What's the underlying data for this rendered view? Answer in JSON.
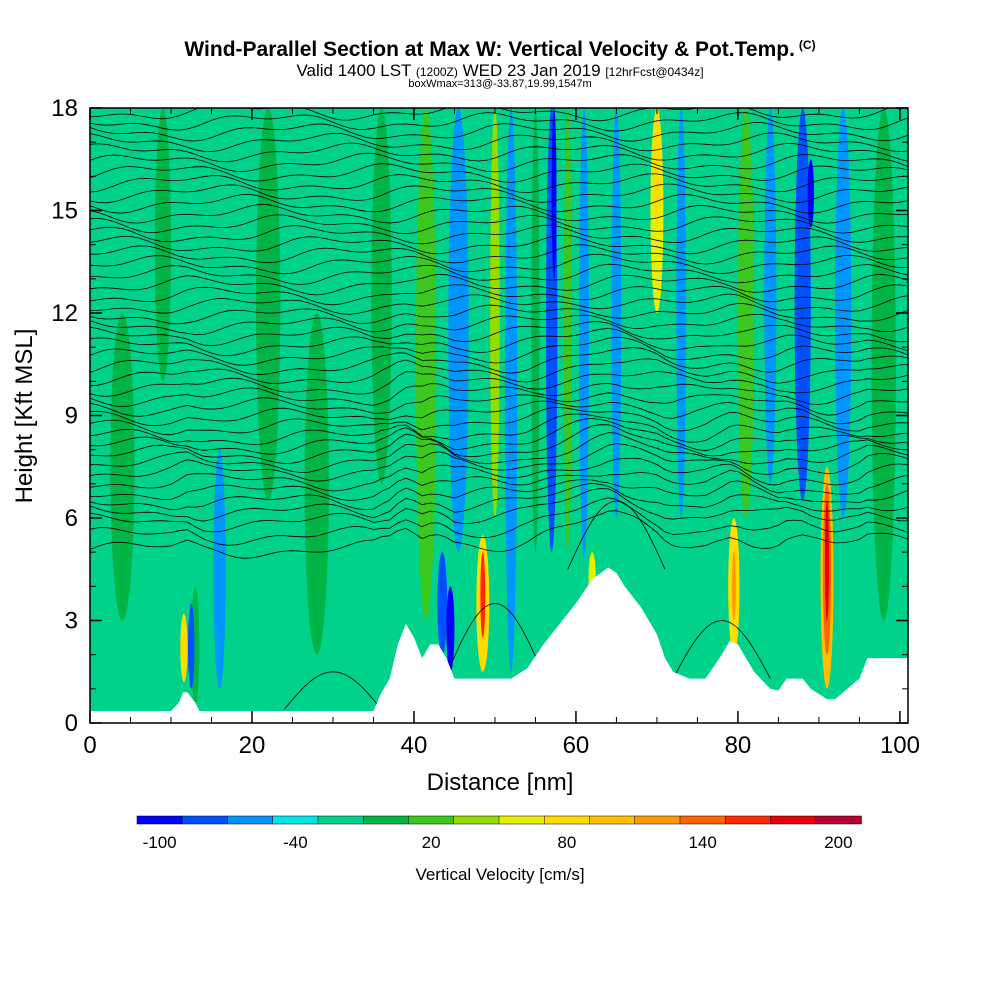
{
  "header": {
    "title": "Wind-Parallel Section at Max W: Vertical Velocity & Pot.Temp.",
    "title_mark": "(C)",
    "subtitle_a": "Valid 1400 LST",
    "subtitle_b": "(1200Z)",
    "subtitle_c": "WED 23 Jan 2019",
    "subtitle_d": "[12hrFcst@0434z]",
    "box_info": "boxWmax=313@-33.87,19.99,1547m"
  },
  "chart_data": {
    "type": "heatmap",
    "xlabel": "Distance [nm]",
    "ylabel": "Height [Kft MSL]",
    "xlim": [
      0,
      101
    ],
    "ylim": [
      0,
      18
    ],
    "x_ticks": [
      0,
      20,
      40,
      60,
      80,
      100
    ],
    "y_ticks": [
      0,
      3,
      6,
      9,
      12,
      15,
      18
    ],
    "background_level": 1,
    "terrain": [
      [
        0,
        0.35
      ],
      [
        10,
        0.35
      ],
      [
        11,
        0.6
      ],
      [
        11.5,
        0.9
      ],
      [
        12,
        0.9
      ],
      [
        13,
        0.6
      ],
      [
        13.5,
        0.35
      ],
      [
        24,
        0.35
      ],
      [
        35,
        0.35
      ],
      [
        36,
        0.9
      ],
      [
        37,
        1.3
      ],
      [
        38,
        2.3
      ],
      [
        39,
        2.9
      ],
      [
        40,
        2.5
      ],
      [
        41,
        1.9
      ],
      [
        42,
        2.3
      ],
      [
        43,
        2.3
      ],
      [
        44,
        1.9
      ],
      [
        45,
        1.3
      ],
      [
        50,
        1.3
      ],
      [
        52,
        1.3
      ],
      [
        54,
        1.6
      ],
      [
        56,
        2.3
      ],
      [
        58,
        2.9
      ],
      [
        60,
        3.5
      ],
      [
        62,
        4.2
      ],
      [
        64,
        4.55
      ],
      [
        65,
        4.4
      ],
      [
        66,
        4.0
      ],
      [
        68,
        3.4
      ],
      [
        70,
        2.6
      ],
      [
        71,
        1.9
      ],
      [
        72,
        1.5
      ],
      [
        74,
        1.3
      ],
      [
        76,
        1.3
      ],
      [
        78,
        2.0
      ],
      [
        79,
        2.4
      ],
      [
        80,
        2.3
      ],
      [
        81,
        1.9
      ],
      [
        82,
        1.5
      ],
      [
        84,
        1.0
      ],
      [
        85,
        0.95
      ],
      [
        86,
        1.3
      ],
      [
        88,
        1.3
      ],
      [
        89,
        1.0
      ],
      [
        91,
        0.7
      ],
      [
        92,
        0.7
      ],
      [
        95,
        1.3
      ],
      [
        96,
        1.9
      ],
      [
        101,
        1.9
      ]
    ],
    "w_bands": [
      {
        "x": 4,
        "width": 3.0,
        "bottom": 3.0,
        "top": 12.0,
        "level": 2
      },
      {
        "x": 9,
        "width": 2.0,
        "bottom": 10.0,
        "top": 18.0,
        "level": 2
      },
      {
        "x": 11.6,
        "width": 0.9,
        "bottom": 1.2,
        "top": 3.2,
        "level": 6
      },
      {
        "x": 13,
        "width": 1.0,
        "bottom": 0.5,
        "top": 4.0,
        "level": 2
      },
      {
        "x": 12.5,
        "width": 0.8,
        "bottom": 1.0,
        "top": 3.5,
        "level": -2
      },
      {
        "x": 16,
        "width": 1.5,
        "bottom": 1.0,
        "top": 8.0,
        "level": -1
      },
      {
        "x": 22,
        "width": 3.0,
        "bottom": 6.5,
        "top": 18.0,
        "level": 2
      },
      {
        "x": 28,
        "width": 3.0,
        "bottom": 2.0,
        "top": 12.0,
        "level": 2
      },
      {
        "x": 36,
        "width": 2.5,
        "bottom": 7.0,
        "top": 18.0,
        "level": 2
      },
      {
        "x": 41.5,
        "width": 2.5,
        "bottom": 3.0,
        "top": 18.0,
        "level": 3
      },
      {
        "x": 43.5,
        "width": 1.2,
        "bottom": 2.0,
        "top": 5.0,
        "level": -2
      },
      {
        "x": 44.5,
        "width": 1.0,
        "bottom": 1.5,
        "top": 4.0,
        "level": -3
      },
      {
        "x": 45.5,
        "width": 2.5,
        "bottom": 5.0,
        "top": 18.0,
        "level": -1
      },
      {
        "x": 48.5,
        "width": 1.6,
        "bottom": 1.5,
        "top": 5.5,
        "level": 6
      },
      {
        "x": 48.5,
        "width": 0.6,
        "bottom": 2.5,
        "top": 5.0,
        "level": 10
      },
      {
        "x": 50,
        "width": 1.2,
        "bottom": 6.0,
        "top": 18.0,
        "level": 4
      },
      {
        "x": 52,
        "width": 1.5,
        "bottom": 1.5,
        "top": 18.0,
        "level": -1
      },
      {
        "x": 55,
        "width": 1.0,
        "bottom": 5.0,
        "top": 18.0,
        "level": 2
      },
      {
        "x": 57,
        "width": 1.4,
        "bottom": 5.0,
        "top": 18.0,
        "level": -2
      },
      {
        "x": 57.3,
        "width": 0.6,
        "bottom": 13.0,
        "top": 18.0,
        "level": -3
      },
      {
        "x": 59,
        "width": 1.0,
        "bottom": 5.0,
        "top": 18.0,
        "level": 3
      },
      {
        "x": 61,
        "width": 1.2,
        "bottom": 4.8,
        "top": 18.0,
        "level": -1
      },
      {
        "x": 62,
        "width": 0.9,
        "bottom": 3.5,
        "top": 5.0,
        "level": 5
      },
      {
        "x": 65,
        "width": 1.2,
        "bottom": 6.0,
        "top": 18.0,
        "level": -1
      },
      {
        "x": 70,
        "width": 1.6,
        "bottom": 12.0,
        "top": 18.0,
        "level": 5
      },
      {
        "x": 70,
        "width": 1.0,
        "bottom": 14.5,
        "top": 18.0,
        "level": 6
      },
      {
        "x": 73,
        "width": 1.2,
        "bottom": 6.0,
        "top": 18.0,
        "level": -1
      },
      {
        "x": 79.5,
        "width": 1.4,
        "bottom": 2.0,
        "top": 6.0,
        "level": 6
      },
      {
        "x": 79.5,
        "width": 0.5,
        "bottom": 3.0,
        "top": 5.0,
        "level": 8
      },
      {
        "x": 81,
        "width": 2.0,
        "bottom": 6.0,
        "top": 18.0,
        "level": 3
      },
      {
        "x": 84,
        "width": 1.5,
        "bottom": 7.0,
        "top": 18.0,
        "level": -1
      },
      {
        "x": 88,
        "width": 2.0,
        "bottom": 6.5,
        "top": 18.0,
        "level": -2
      },
      {
        "x": 89,
        "width": 0.8,
        "bottom": 14.5,
        "top": 16.5,
        "level": -3
      },
      {
        "x": 91,
        "width": 1.6,
        "bottom": 1.0,
        "top": 7.5,
        "level": 7
      },
      {
        "x": 91,
        "width": 1.0,
        "bottom": 2.0,
        "top": 7.0,
        "level": 9
      },
      {
        "x": 91,
        "width": 0.5,
        "bottom": 3.0,
        "top": 6.5,
        "level": 11
      },
      {
        "x": 93,
        "width": 2.0,
        "bottom": 6.0,
        "top": 18.0,
        "level": -1
      },
      {
        "x": 98,
        "width": 3.0,
        "bottom": 3.0,
        "top": 18.0,
        "level": 2
      }
    ],
    "theta_base_heights": [
      5.0,
      5.4,
      5.8,
      6.1,
      6.4,
      6.7,
      7.0,
      7.3,
      7.55,
      7.8,
      8.05,
      8.3,
      8.6,
      8.9,
      9.2,
      9.5,
      9.8,
      10.1,
      10.4,
      10.7,
      11.0,
      11.3,
      11.6,
      11.9,
      12.2,
      12.5,
      12.8,
      13.1,
      13.4,
      13.7,
      14.0,
      14.3,
      14.6,
      14.9,
      15.2,
      15.5,
      15.8,
      16.1,
      16.4,
      16.7,
      17.0,
      17.3,
      17.6,
      17.9
    ],
    "colorbar": {
      "title": "Vertical Velocity [cm/s]",
      "tick_labels": [
        "-100",
        "-40",
        "20",
        "80",
        "140",
        "200"
      ],
      "colors": [
        "#0000ff",
        "#0050ff",
        "#0096ff",
        "#00e6e6",
        "#00d28c",
        "#00b446",
        "#3cc81e",
        "#96dc00",
        "#e6f000",
        "#ffdc00",
        "#ffbe00",
        "#ff9b00",
        "#ff6400",
        "#ff2800",
        "#e6000a",
        "#b40032"
      ]
    }
  }
}
